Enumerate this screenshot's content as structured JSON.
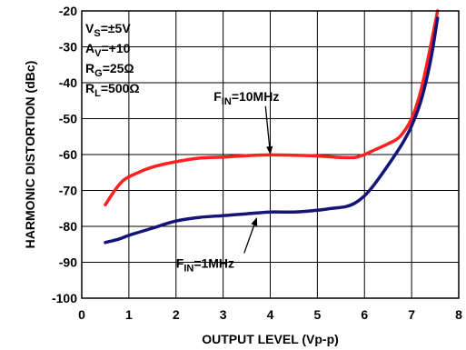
{
  "chart_data": {
    "type": "line",
    "xlabel": "OUTPUT LEVEL (Vp-p)",
    "ylabel": "HARMONIC DISTORTION (dBc)",
    "xlim": [
      0,
      8
    ],
    "ylim": [
      -100,
      -20
    ],
    "x_ticks": [
      "0",
      "1",
      "2",
      "3",
      "4",
      "5",
      "6",
      "7",
      "8"
    ],
    "y_ticks": [
      "-20",
      "-30",
      "-40",
      "-50",
      "-60",
      "-70",
      "-80",
      "-90",
      "-100"
    ],
    "grid": true,
    "conditions": [
      {
        "base": "V",
        "sub": "S",
        "rest": "=±5V"
      },
      {
        "base": "A",
        "sub": "V",
        "rest": "=+10"
      },
      {
        "base": "R",
        "sub": "G",
        "rest": "=25Ω"
      },
      {
        "base": "R",
        "sub": "L",
        "rest": "=500Ω"
      }
    ],
    "series": [
      {
        "label_base": "F",
        "label_sub": "IN",
        "label_rest": "=10MHz",
        "color": "#ff2020",
        "x": [
          0.5,
          0.7,
          0.9,
          1.2,
          1.5,
          2.0,
          2.5,
          3.0,
          3.5,
          4.0,
          4.5,
          5.0,
          5.5,
          5.8,
          6.0,
          6.2,
          6.5,
          6.75,
          7.0,
          7.2,
          7.4,
          7.55
        ],
        "y": [
          -74,
          -70,
          -67,
          -65,
          -63.5,
          -62,
          -61,
          -60.7,
          -60.3,
          -60.1,
          -60.2,
          -60.4,
          -60.8,
          -60.8,
          -60,
          -58.8,
          -57,
          -55,
          -50,
          -42,
          -30,
          -19
        ]
      },
      {
        "label_base": "F",
        "label_sub": "IN",
        "label_rest": "=1MHz",
        "color": "#141478",
        "x": [
          0.5,
          0.8,
          1.0,
          1.5,
          2.0,
          2.5,
          3.0,
          3.5,
          4.0,
          4.5,
          5.0,
          5.3,
          5.6,
          5.8,
          6.0,
          6.2,
          6.5,
          6.8,
          7.0,
          7.2,
          7.4,
          7.55
        ],
        "y": [
          -84.5,
          -83.5,
          -82.5,
          -80.5,
          -78.5,
          -77.5,
          -77,
          -76.5,
          -76,
          -76,
          -75.5,
          -75,
          -74.5,
          -73.5,
          -71.5,
          -68.5,
          -63,
          -57,
          -52,
          -45,
          -34,
          -22
        ]
      }
    ],
    "annotations": [
      {
        "base": "F",
        "sub": "IN",
        "rest": "=10MHz",
        "target_x": 4.0,
        "target_y": -60.3,
        "text_x": 2.8,
        "text_y": -45
      },
      {
        "base": "F",
        "sub": "IN",
        "rest": "=1MHz",
        "target_x": 3.75,
        "target_y": -77.2,
        "text_x": 2.0,
        "text_y": -91.5
      }
    ]
  }
}
